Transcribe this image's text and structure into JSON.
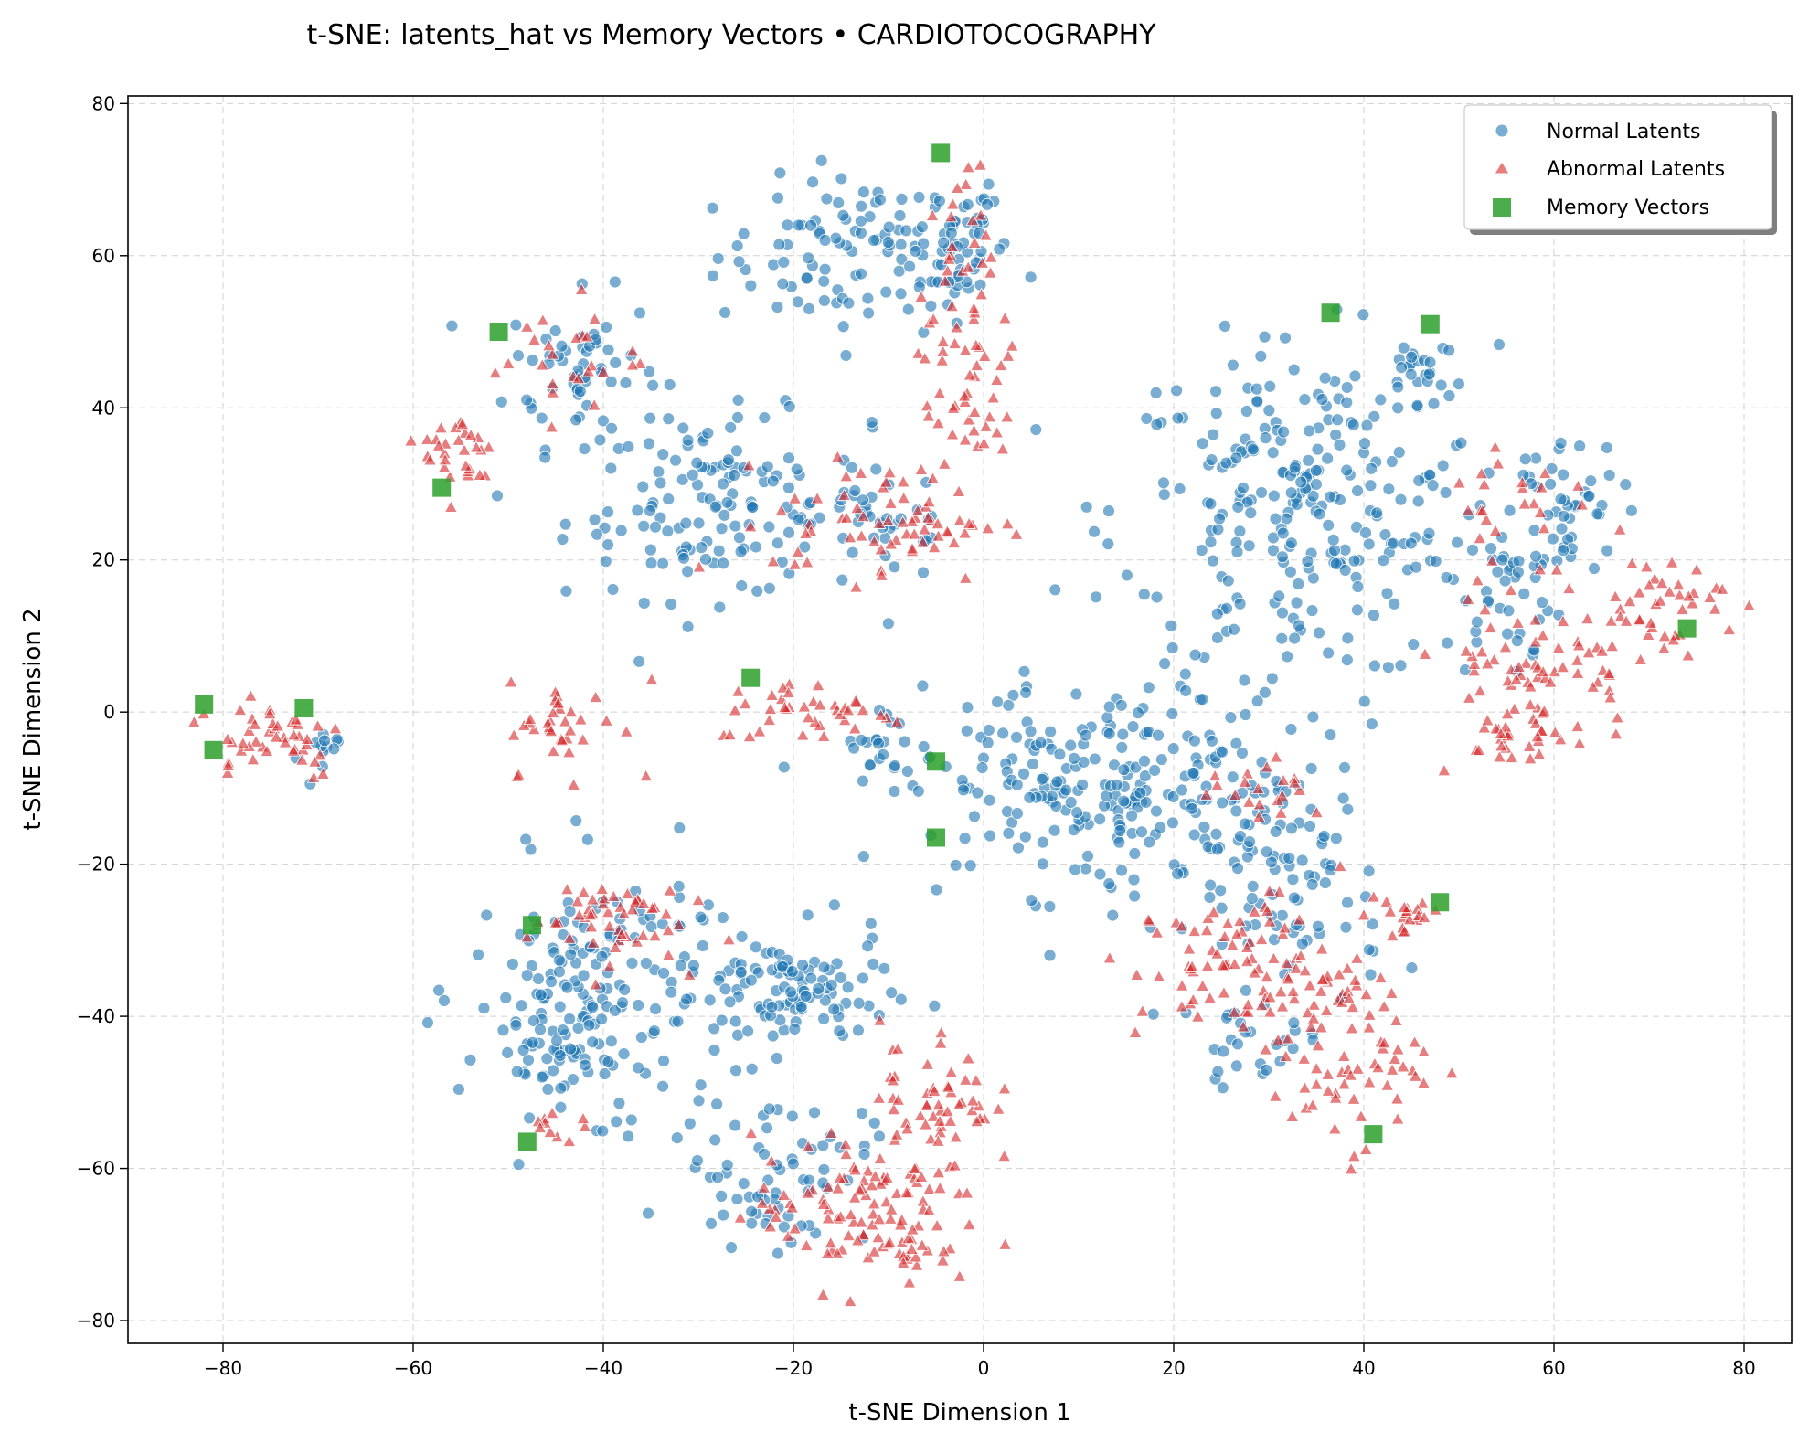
{
  "chart_data": {
    "type": "scatter",
    "title": "t-SNE: latents_hat vs Memory Vectors • CARDIOTOCOGRAPHY",
    "xlabel": "t-SNE Dimension 1",
    "ylabel": "t-SNE Dimension 2",
    "xlim": [
      -90,
      85
    ],
    "ylim": [
      -83,
      81
    ],
    "xticks": [
      -80,
      -60,
      -40,
      -20,
      0,
      20,
      40,
      60,
      80
    ],
    "yticks": [
      -80,
      -60,
      -40,
      -20,
      0,
      20,
      40,
      60,
      80
    ],
    "xtick_labels": [
      "−80",
      "−60",
      "−40",
      "−20",
      "0",
      "20",
      "40",
      "60",
      "80"
    ],
    "ytick_labels": [
      "−80",
      "−60",
      "−40",
      "−20",
      "0",
      "20",
      "40",
      "60",
      "80"
    ],
    "grid": true,
    "legend_position": "top-right",
    "series": [
      {
        "name": "Normal Latents",
        "marker": "circle",
        "color": "#1f77b4",
        "clusters": [
          {
            "cx": -12,
            "cy": 60,
            "sx": 8,
            "sy": 5,
            "n": 110
          },
          {
            "cx": -4,
            "cy": 62,
            "sx": 3,
            "sy": 5,
            "n": 40
          },
          {
            "cx": -42,
            "cy": 45,
            "sx": 4,
            "sy": 5,
            "n": 60
          },
          {
            "cx": -28,
            "cy": 27,
            "sx": 8,
            "sy": 6,
            "n": 140
          },
          {
            "cx": -10,
            "cy": 25,
            "sx": 4,
            "sy": 4,
            "n": 30
          },
          {
            "cx": 34,
            "cy": 26,
            "sx": 10,
            "sy": 11,
            "n": 270
          },
          {
            "cx": 46,
            "cy": 46,
            "sx": 2,
            "sy": 2,
            "n": 20
          },
          {
            "cx": 61,
            "cy": 26,
            "sx": 3,
            "sy": 5,
            "n": 50
          },
          {
            "cx": 55,
            "cy": 15,
            "sx": 3,
            "sy": 5,
            "n": 30
          },
          {
            "cx": 12,
            "cy": -10,
            "sx": 11,
            "sy": 7,
            "n": 260
          },
          {
            "cx": 32,
            "cy": -24,
            "sx": 5,
            "sy": 9,
            "n": 90
          },
          {
            "cx": 28,
            "cy": -44,
            "sx": 4,
            "sy": 2,
            "n": 20
          },
          {
            "cx": -40,
            "cy": -36,
            "sx": 7,
            "sy": 8,
            "n": 160
          },
          {
            "cx": -20,
            "cy": -37,
            "sx": 5,
            "sy": 4,
            "n": 100
          },
          {
            "cx": -22,
            "cy": -60,
            "sx": 5,
            "sy": 5,
            "n": 70
          },
          {
            "cx": -45,
            "cy": -45,
            "sx": 4,
            "sy": 3,
            "n": 40
          },
          {
            "cx": -70,
            "cy": -6,
            "sx": 1,
            "sy": 2,
            "n": 12
          },
          {
            "cx": -12,
            "cy": -4,
            "sx": 2,
            "sy": 2,
            "n": 14
          }
        ]
      },
      {
        "name": "Abnormal Latents",
        "marker": "triangle",
        "color": "#d62728",
        "clusters": [
          {
            "cx": -3,
            "cy": 55,
            "sx": 2,
            "sy": 8,
            "n": 40
          },
          {
            "cx": -1,
            "cy": 40,
            "sx": 2,
            "sy": 4,
            "n": 30
          },
          {
            "cx": -10,
            "cy": 25,
            "sx": 6,
            "sy": 4,
            "n": 70
          },
          {
            "cx": -44,
            "cy": 47,
            "sx": 4,
            "sy": 4,
            "n": 25
          },
          {
            "cx": -55,
            "cy": 34,
            "sx": 2,
            "sy": 3,
            "n": 30
          },
          {
            "cx": -75,
            "cy": -3,
            "sx": 4,
            "sy": 3,
            "n": 45
          },
          {
            "cx": -44,
            "cy": -2,
            "sx": 3,
            "sy": 3,
            "n": 35
          },
          {
            "cx": -18,
            "cy": 0,
            "sx": 5,
            "sy": 2,
            "n": 40
          },
          {
            "cx": 56,
            "cy": 28,
            "sx": 4,
            "sy": 5,
            "n": 25
          },
          {
            "cx": 58,
            "cy": 6,
            "sx": 5,
            "sy": 4,
            "n": 60
          },
          {
            "cx": 56,
            "cy": -3,
            "sx": 5,
            "sy": 2,
            "n": 30
          },
          {
            "cx": 70,
            "cy": 14,
            "sx": 4,
            "sy": 3,
            "n": 45
          },
          {
            "cx": 28,
            "cy": -34,
            "sx": 6,
            "sy": 5,
            "n": 90
          },
          {
            "cx": 38,
            "cy": -45,
            "sx": 4,
            "sy": 6,
            "n": 70
          },
          {
            "cx": 44,
            "cy": -27,
            "sx": 2,
            "sy": 2,
            "n": 20
          },
          {
            "cx": -40,
            "cy": -27,
            "sx": 4,
            "sy": 3,
            "n": 50
          },
          {
            "cx": -12,
            "cy": -66,
            "sx": 6,
            "sy": 5,
            "n": 120
          },
          {
            "cx": -5,
            "cy": -50,
            "sx": 3,
            "sy": 5,
            "n": 50
          },
          {
            "cx": -45,
            "cy": -55,
            "sx": 2,
            "sy": 1,
            "n": 10
          },
          {
            "cx": 30,
            "cy": -10,
            "sx": 3,
            "sy": 2,
            "n": 20
          }
        ]
      },
      {
        "name": "Memory Vectors",
        "marker": "square",
        "color": "#2ca02c",
        "points": [
          [
            -4.5,
            73.5
          ],
          [
            -51,
            50
          ],
          [
            -57,
            29.5
          ],
          [
            36.5,
            52.5
          ],
          [
            47,
            51
          ],
          [
            74,
            11
          ],
          [
            -82,
            1
          ],
          [
            -71.5,
            0.5
          ],
          [
            -81,
            -5
          ],
          [
            -24.5,
            4.5
          ],
          [
            -5,
            -6.5
          ],
          [
            -5,
            -16.5
          ],
          [
            -47.5,
            -28
          ],
          [
            -48,
            -56.5
          ],
          [
            48,
            -25
          ],
          [
            41,
            -55.5
          ]
        ]
      }
    ]
  }
}
